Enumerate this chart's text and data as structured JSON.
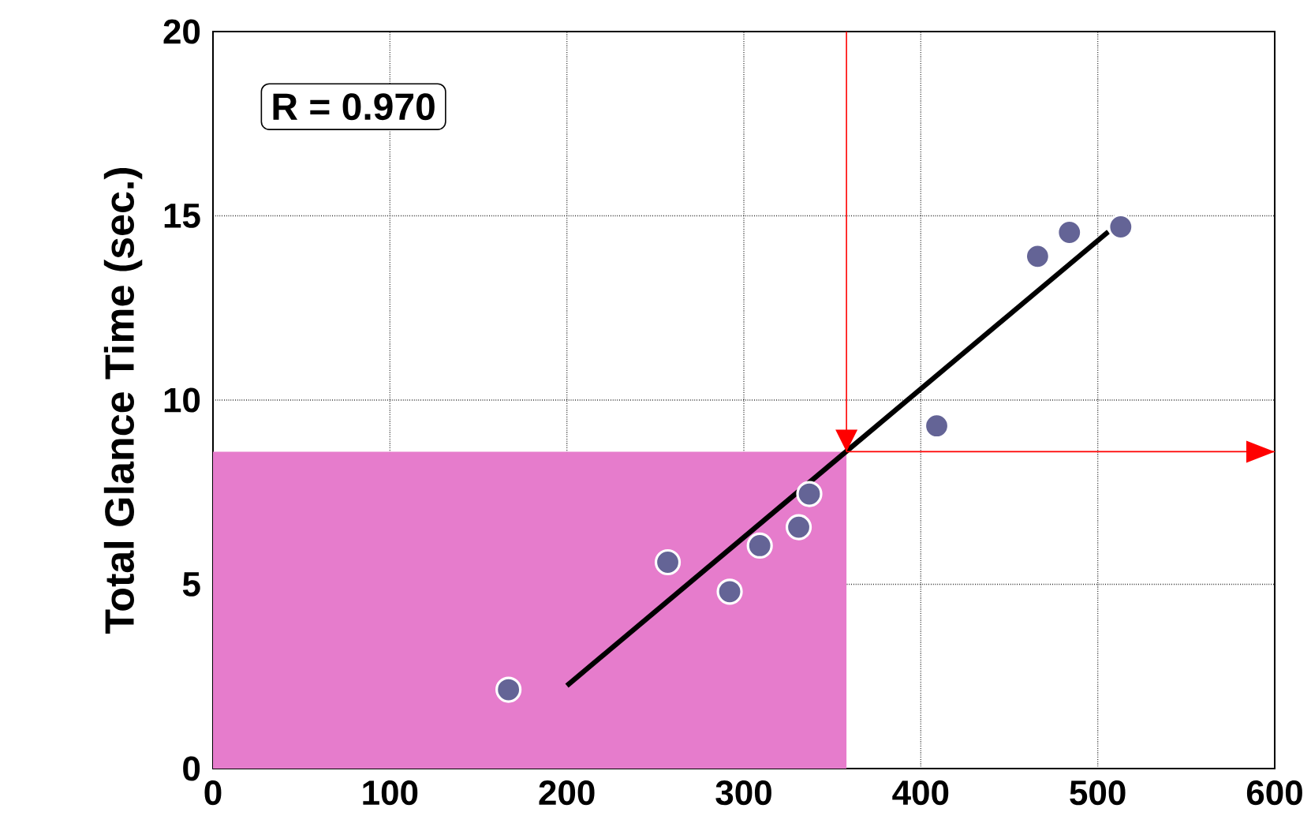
{
  "chart_data": {
    "type": "scatter",
    "ylabel": "Total Glance Time (sec.)",
    "xlim": [
      0,
      600
    ],
    "ylim": [
      0,
      20
    ],
    "xticks": [
      0,
      100,
      200,
      300,
      400,
      500,
      600
    ],
    "yticks": [
      0,
      5,
      10,
      15,
      20
    ],
    "grid": true,
    "series": [
      {
        "type": "area",
        "color": "#e67ccc",
        "x": [
          0,
          358
        ],
        "values": [
          8.6,
          8.6
        ]
      },
      {
        "marker": "circle",
        "color": "#646496",
        "x": [
          167,
          257,
          292,
          309,
          331,
          337,
          409,
          466,
          484,
          513
        ],
        "values": [
          2.14,
          5.6,
          4.8,
          6.05,
          6.55,
          7.45,
          9.3,
          13.9,
          14.55,
          14.7
        ]
      },
      {
        "type": "line",
        "color": "#000000",
        "x": [
          200,
          506
        ],
        "values": [
          2.25,
          14.57
        ]
      }
    ],
    "ref_lines": [
      {
        "axis": "x",
        "value": 358,
        "color": "#ff0000"
      },
      {
        "axis": "y",
        "value": 8.6,
        "color": "#ff0000"
      }
    ],
    "annotations": [
      "R = 0.970"
    ]
  }
}
